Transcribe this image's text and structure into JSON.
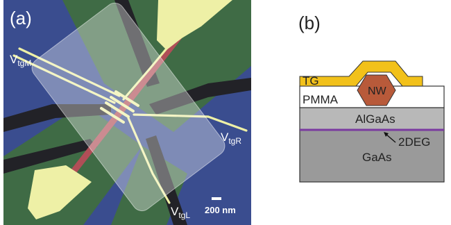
{
  "figure": {
    "panel_a": {
      "label": "(a)",
      "gates": {
        "m": {
          "main": "V",
          "sub": "tgM"
        },
        "r": {
          "main": "V",
          "sub": "tgR"
        },
        "l": {
          "main": "V",
          "sub": "tgL"
        }
      },
      "scale_bar": "200 nm",
      "colors": {
        "substrate_blue": "#3a4d8f",
        "region_green": "#3f6b45",
        "etched_dark": "#222227",
        "gate_yellow": "#eef0a6",
        "nanowire_red": "#b04e57",
        "pmma_overlay": "#ffffff"
      }
    },
    "panel_b": {
      "label": "(b)",
      "layers": {
        "tg": "TG",
        "pmma": "PMMA",
        "nw": "NW",
        "algaas": "AlGaAs",
        "twodeg": "2DEG",
        "gaas": "GaAs"
      },
      "colors": {
        "tg_gold": "#f2c11a",
        "nw_brown": "#b85a3a",
        "algaas_gray": "#b8b8b8",
        "gaas_gray": "#9a9a9a",
        "twodeg_purple": "#7a3aa0"
      }
    }
  }
}
